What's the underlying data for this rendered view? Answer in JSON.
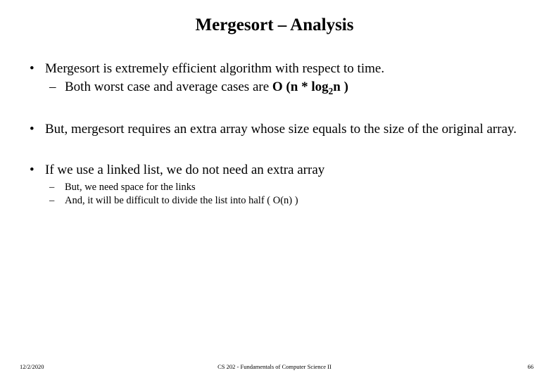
{
  "title_fontsize": 25,
  "body_fontsize": 19,
  "small_fontsize": 14.5,
  "footer_fontsize": 8.5,
  "background_color": "#ffffff",
  "text_color": "#000000",
  "font_family": "Times New Roman",
  "title": "Mergesort – Analysis",
  "bullets": [
    {
      "text": "Mergesort is extremely efficient algorithm with respect to time.",
      "children": [
        {
          "pre": "Both worst case and average cases are ",
          "bold": "O (n * log",
          "sub": "2",
          "post": "n )"
        }
      ]
    },
    {
      "text": "But, mergesort requires an extra array whose size equals to the size of the original array."
    },
    {
      "text": "If we use a linked list, we do not need an extra array",
      "small_children": [
        "But, we need space for the links",
        "And, it will be difficult to divide the list into half ( O(n) )"
      ]
    }
  ],
  "footer": {
    "date": "12/2/2020",
    "center": "CS 202 - Fundamentals of Computer Science II",
    "page": "66"
  }
}
